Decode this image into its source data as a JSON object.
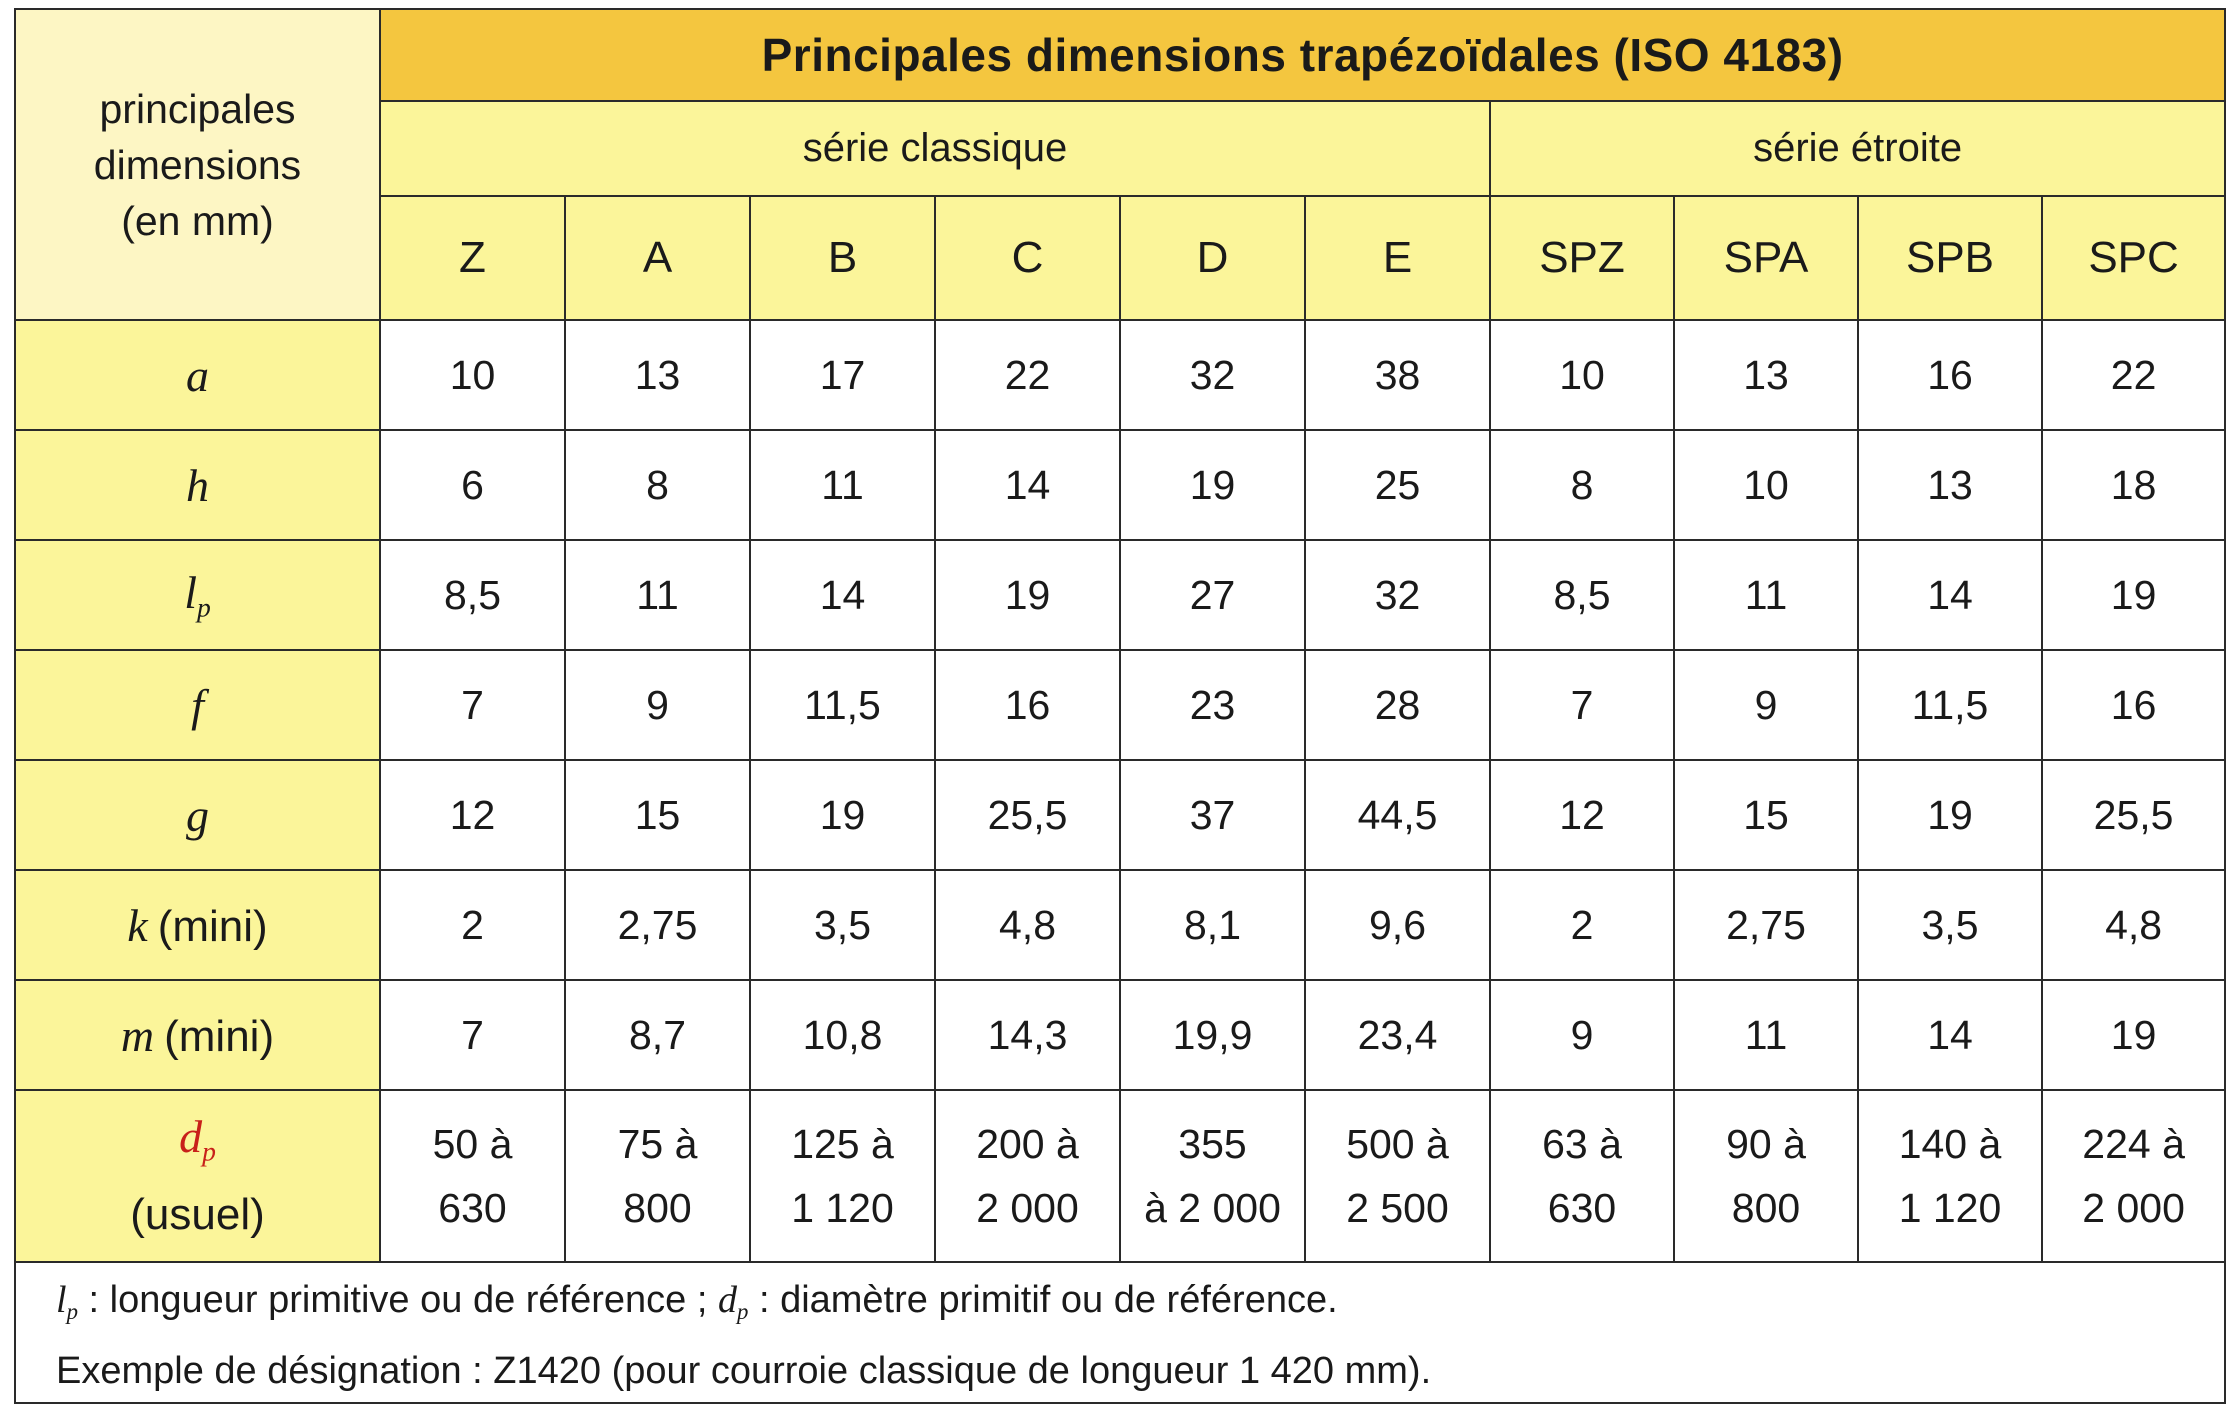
{
  "title": "Principales dimensions trapézoïdales (ISO 4183)",
  "header_label": [
    "principales",
    "dimensions",
    "(en mm)"
  ],
  "series": {
    "classique": "série classique",
    "etroite": "série étroite"
  },
  "columns": [
    "Z",
    "A",
    "B",
    "C",
    "D",
    "E",
    "SPZ",
    "SPA",
    "SPB",
    "SPC"
  ],
  "rows": [
    {
      "symbol": "a",
      "sub": "",
      "suffix": "",
      "values": [
        "10",
        "13",
        "17",
        "22",
        "32",
        "38",
        "10",
        "13",
        "16",
        "22"
      ]
    },
    {
      "symbol": "h",
      "sub": "",
      "suffix": "",
      "values": [
        "6",
        "8",
        "11",
        "14",
        "19",
        "25",
        "8",
        "10",
        "13",
        "18"
      ]
    },
    {
      "symbol": "l",
      "sub": "p",
      "suffix": "",
      "values": [
        "8,5",
        "11",
        "14",
        "19",
        "27",
        "32",
        "8,5",
        "11",
        "14",
        "19"
      ]
    },
    {
      "symbol": "f",
      "sub": "",
      "suffix": "",
      "values": [
        "7",
        "9",
        "11,5",
        "16",
        "23",
        "28",
        "7",
        "9",
        "11,5",
        "16"
      ]
    },
    {
      "symbol": "g",
      "sub": "",
      "suffix": "",
      "values": [
        "12",
        "15",
        "19",
        "25,5",
        "37",
        "44,5",
        "12",
        "15",
        "19",
        "25,5"
      ]
    },
    {
      "symbol": "k",
      "sub": "",
      "suffix": "(mini)",
      "values": [
        "2",
        "2,75",
        "3,5",
        "4,8",
        "8,1",
        "9,6",
        "2",
        "2,75",
        "3,5",
        "4,8"
      ]
    },
    {
      "symbol": "m",
      "sub": "",
      "suffix": "(mini)",
      "values": [
        "7",
        "8,7",
        "10,8",
        "14,3",
        "19,9",
        "23,4",
        "9",
        "11",
        "14",
        "19"
      ]
    }
  ],
  "dp_row": {
    "symbol": "d",
    "sub": "p",
    "suffix": "(usuel)",
    "values": [
      [
        "50 à",
        "630"
      ],
      [
        "75 à",
        "800"
      ],
      [
        "125 à",
        "1 120"
      ],
      [
        "200 à",
        "2 000"
      ],
      [
        "355",
        "à 2 000"
      ],
      [
        "500 à",
        "2 500"
      ],
      [
        "63 à",
        "630"
      ],
      [
        "90 à",
        "800"
      ],
      [
        "140 à",
        "1 120"
      ],
      [
        "224 à",
        "2 000"
      ]
    ]
  },
  "notes": {
    "line1": {
      "sym1": "l",
      "sub1": "p",
      "text1": " : longueur primitive ou de référence ; ",
      "sym2": "d",
      "sub2": "p",
      "text2": " : diamètre primitif ou de référence."
    },
    "line2": "Exemple de désignation : Z1420 (pour courroie classique de longueur 1 420 mm)."
  },
  "colors": {
    "header_gold": "#f4c63f",
    "cream": "#fdf6c4",
    "light_yellow": "#fbf59a",
    "dp_red": "#c8201a",
    "border": "#2a2a2a"
  }
}
